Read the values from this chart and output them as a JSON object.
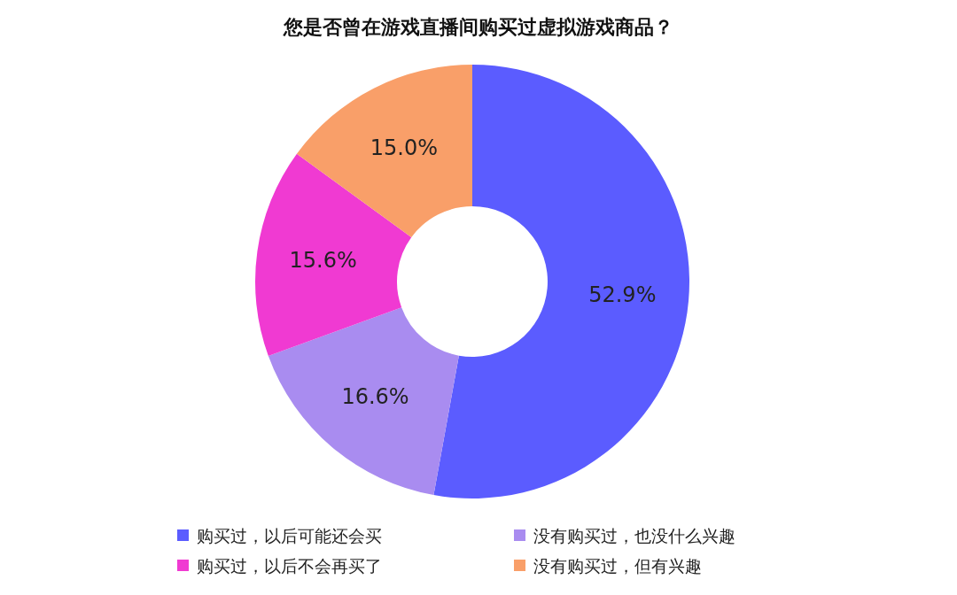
{
  "chart_data": {
    "type": "donut",
    "title": "您是否曾在游戏直播间购买过虚拟游戏商品？",
    "categories": [
      "购买过，以后可能还会买",
      "没有购买过，也没什么兴趣",
      "购买过，以后不会再买了",
      "没有购买过，但有兴趣"
    ],
    "values": [
      52.9,
      16.6,
      15.6,
      15.0
    ],
    "colors": [
      "#5b5cff",
      "#a98cf0",
      "#f03ad2",
      "#f99f69"
    ],
    "value_labels": [
      "52.9%",
      "16.6%",
      "15.6%",
      "15.0%"
    ],
    "legend": "bottom"
  }
}
